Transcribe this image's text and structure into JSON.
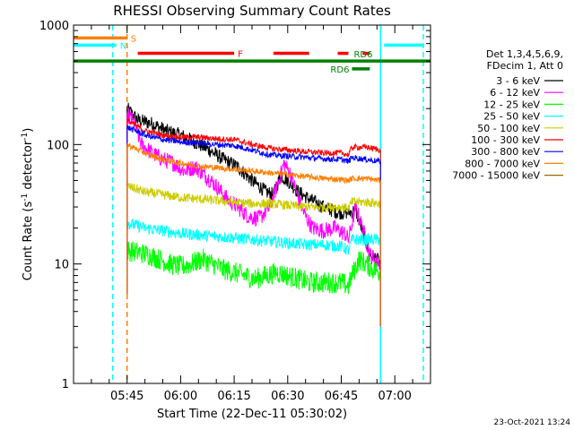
{
  "chart_data": {
    "type": "line",
    "title": "RHESSI Observing Summary Count Rates",
    "xlabel": "Start Time (22-Dec-11 05:30:02)",
    "ylabel_main": "Count Rate (s",
    "ylabel_sup1": "-1",
    "ylabel_mid": " detector",
    "ylabel_sup2": "-1",
    "ylabel_end": ")",
    "y_scale": "log",
    "ylim": [
      1,
      1000
    ],
    "xlim": [
      "05:30",
      "07:10"
    ],
    "x_ticks": [
      "05:45",
      "06:00",
      "06:15",
      "06:30",
      "06:45",
      "07:00"
    ],
    "y_ticks": [
      "1",
      "10",
      "100",
      "1000"
    ],
    "grid": false,
    "legend_position": "right",
    "legend_header": [
      "Det 1,3,4,5,6,9,",
      "FDecim 1, Att 0"
    ],
    "timestamp": "23-Oct-2021 13:24",
    "series": [
      {
        "name": "3 - 6 keV",
        "color": "#000000",
        "points": [
          [
            "05:45",
            200
          ],
          [
            "05:48",
            160
          ],
          [
            "05:52",
            150
          ],
          [
            "05:56",
            130
          ],
          [
            "06:00",
            120
          ],
          [
            "06:04",
            105
          ],
          [
            "06:08",
            90
          ],
          [
            "06:12",
            75
          ],
          [
            "06:16",
            65
          ],
          [
            "06:20",
            50
          ],
          [
            "06:24",
            40
          ],
          [
            "06:26",
            38
          ],
          [
            "06:28",
            55
          ],
          [
            "06:30",
            50
          ],
          [
            "06:33",
            40
          ],
          [
            "06:36",
            35
          ],
          [
            "06:40",
            30
          ],
          [
            "06:44",
            27
          ],
          [
            "06:47",
            27
          ],
          [
            "06:49",
            28
          ],
          [
            "06:50",
            23
          ],
          [
            "06:52",
            15
          ],
          [
            "06:53",
            12
          ],
          [
            "06:55",
            11
          ],
          [
            "06:56",
            10
          ]
        ]
      },
      {
        "name": "6 - 12 keV",
        "color": "#ff00ff",
        "points": [
          [
            "05:45",
            180
          ],
          [
            "05:47",
            150
          ],
          [
            "05:49",
            100
          ],
          [
            "05:52",
            85
          ],
          [
            "05:55",
            75
          ],
          [
            "05:58",
            70
          ],
          [
            "06:01",
            60
          ],
          [
            "06:04",
            65
          ],
          [
            "06:07",
            55
          ],
          [
            "06:10",
            45
          ],
          [
            "06:13",
            35
          ],
          [
            "06:16",
            30
          ],
          [
            "06:19",
            25
          ],
          [
            "06:22",
            24
          ],
          [
            "06:25",
            30
          ],
          [
            "06:27",
            45
          ],
          [
            "06:29",
            70
          ],
          [
            "06:31",
            55
          ],
          [
            "06:33",
            35
          ],
          [
            "06:35",
            25
          ],
          [
            "06:37",
            20
          ],
          [
            "06:40",
            19
          ],
          [
            "06:43",
            20
          ],
          [
            "06:46",
            18
          ],
          [
            "06:47",
            16
          ],
          [
            "06:49",
            30
          ],
          [
            "06:51",
            20
          ],
          [
            "06:53",
            12
          ],
          [
            "06:56",
            10
          ]
        ]
      },
      {
        "name": "12 - 25 keV",
        "color": "#00ff00",
        "points": [
          [
            "05:45",
            13
          ],
          [
            "05:48",
            12.5
          ],
          [
            "05:51",
            12
          ],
          [
            "05:54",
            11
          ],
          [
            "05:57",
            10
          ],
          [
            "06:00",
            9.5
          ],
          [
            "06:03",
            10
          ],
          [
            "06:06",
            11
          ],
          [
            "06:09",
            10
          ],
          [
            "06:12",
            9
          ],
          [
            "06:15",
            8.5
          ],
          [
            "06:18",
            8
          ],
          [
            "06:21",
            7.5
          ],
          [
            "06:24",
            8
          ],
          [
            "06:27",
            8.5
          ],
          [
            "06:30",
            8
          ],
          [
            "06:33",
            7.5
          ],
          [
            "06:36",
            7
          ],
          [
            "06:39",
            7
          ],
          [
            "06:42",
            7
          ],
          [
            "06:45",
            7
          ],
          [
            "06:47",
            6.5
          ],
          [
            "06:48",
            8
          ],
          [
            "06:50",
            11
          ],
          [
            "06:52",
            10
          ],
          [
            "06:54",
            9
          ],
          [
            "06:56",
            8.5
          ]
        ]
      },
      {
        "name": "25 - 50 keV",
        "color": "#00ffff",
        "points": [
          [
            "05:45",
            22
          ],
          [
            "05:50",
            20
          ],
          [
            "05:55",
            19
          ],
          [
            "06:00",
            18
          ],
          [
            "06:05",
            17.5
          ],
          [
            "06:10",
            17
          ],
          [
            "06:15",
            16.5
          ],
          [
            "06:20",
            16
          ],
          [
            "06:25",
            15.5
          ],
          [
            "06:30",
            15
          ],
          [
            "06:35",
            14.5
          ],
          [
            "06:40",
            14.5
          ],
          [
            "06:45",
            14
          ],
          [
            "06:47",
            13
          ],
          [
            "06:48",
            16
          ],
          [
            "06:52",
            16
          ],
          [
            "06:56",
            16
          ]
        ]
      },
      {
        "name": "50 - 100 keV",
        "color": "#cccc00",
        "points": [
          [
            "05:45",
            45
          ],
          [
            "05:50",
            40
          ],
          [
            "05:55",
            38
          ],
          [
            "06:00",
            36
          ],
          [
            "06:05",
            35
          ],
          [
            "06:10",
            34
          ],
          [
            "06:15",
            33
          ],
          [
            "06:20",
            32
          ],
          [
            "06:25",
            32
          ],
          [
            "06:30",
            31
          ],
          [
            "06:35",
            30
          ],
          [
            "06:40",
            30
          ],
          [
            "06:45",
            30
          ],
          [
            "06:47",
            29
          ],
          [
            "06:48",
            33
          ],
          [
            "06:52",
            33
          ],
          [
            "06:56",
            32
          ]
        ]
      },
      {
        "name": "100 - 300 keV",
        "color": "#ff0000",
        "points": [
          [
            "05:45",
            160
          ],
          [
            "05:50",
            130
          ],
          [
            "05:55",
            120
          ],
          [
            "06:00",
            115
          ],
          [
            "06:05",
            115
          ],
          [
            "06:10",
            112
          ],
          [
            "06:15",
            110
          ],
          [
            "06:20",
            100
          ],
          [
            "06:25",
            93
          ],
          [
            "06:30",
            90
          ],
          [
            "06:35",
            87
          ],
          [
            "06:40",
            85
          ],
          [
            "06:45",
            85
          ],
          [
            "06:47",
            82
          ],
          [
            "06:48",
            95
          ],
          [
            "06:52",
            95
          ],
          [
            "06:56",
            90
          ]
        ]
      },
      {
        "name": "300 - 800 keV",
        "color": "#0000ff",
        "points": [
          [
            "05:45",
            140
          ],
          [
            "05:50",
            120
          ],
          [
            "05:55",
            110
          ],
          [
            "06:00",
            105
          ],
          [
            "06:05",
            103
          ],
          [
            "06:10",
            100
          ],
          [
            "06:15",
            98
          ],
          [
            "06:20",
            90
          ],
          [
            "06:25",
            82
          ],
          [
            "06:30",
            80
          ],
          [
            "06:35",
            78
          ],
          [
            "06:40",
            76
          ],
          [
            "06:45",
            75
          ],
          [
            "06:47",
            72
          ],
          [
            "06:48",
            78
          ],
          [
            "06:52",
            75
          ],
          [
            "06:56",
            72
          ]
        ]
      },
      {
        "name": "800 - 7000 keV",
        "color": "#ff8000",
        "points": [
          [
            "05:45",
            100
          ],
          [
            "05:50",
            85
          ],
          [
            "05:55",
            75
          ],
          [
            "06:00",
            70
          ],
          [
            "06:05",
            66
          ],
          [
            "06:10",
            64
          ],
          [
            "06:15",
            62
          ],
          [
            "06:20",
            60
          ],
          [
            "06:25",
            58
          ],
          [
            "06:30",
            56
          ],
          [
            "06:35",
            54
          ],
          [
            "06:40",
            52
          ],
          [
            "06:45",
            51
          ],
          [
            "06:47",
            50
          ],
          [
            "06:48",
            52
          ],
          [
            "06:52",
            52
          ],
          [
            "06:56",
            50
          ]
        ]
      },
      {
        "name": "7000 - 15000 keV",
        "color": "#996600",
        "points": []
      }
    ],
    "flags": [
      {
        "label": "S",
        "color": "#ff8000",
        "level": 780,
        "segments": [
          [
            "05:30",
            "05:45"
          ]
        ]
      },
      {
        "label": "N",
        "color": "#00ffff",
        "level": 680,
        "segments": [
          [
            "05:30",
            "05:42"
          ],
          [
            "06:57",
            "07:08"
          ]
        ]
      },
      {
        "label": "F",
        "color": "#ff0000",
        "level": 580,
        "segments": [
          [
            "05:48",
            "06:15"
          ],
          [
            "06:26",
            "06:36"
          ],
          [
            "06:44",
            "06:47"
          ],
          [
            "06:51",
            "06:53"
          ]
        ]
      },
      {
        "label": "",
        "color": "#008000",
        "level": 500,
        "segments": [
          [
            "05:30",
            "07:10"
          ]
        ]
      },
      {
        "label": "RD6",
        "color": "#008000",
        "level": 430,
        "segments": [
          [
            "06:48",
            "06:53"
          ]
        ]
      },
      {
        "label": "RD6",
        "color": "#008000",
        "level": 520,
        "segments": []
      }
    ],
    "vlines": [
      {
        "time": "05:41",
        "color": "#00ffff",
        "style": "dashed"
      },
      {
        "time": "05:45",
        "color": "#ff8000",
        "style": "dashed"
      },
      {
        "time": "06:56",
        "color": "#00ffff",
        "style": "solid"
      },
      {
        "time": "07:08",
        "color": "#00ffff",
        "style": "dashed"
      }
    ]
  }
}
